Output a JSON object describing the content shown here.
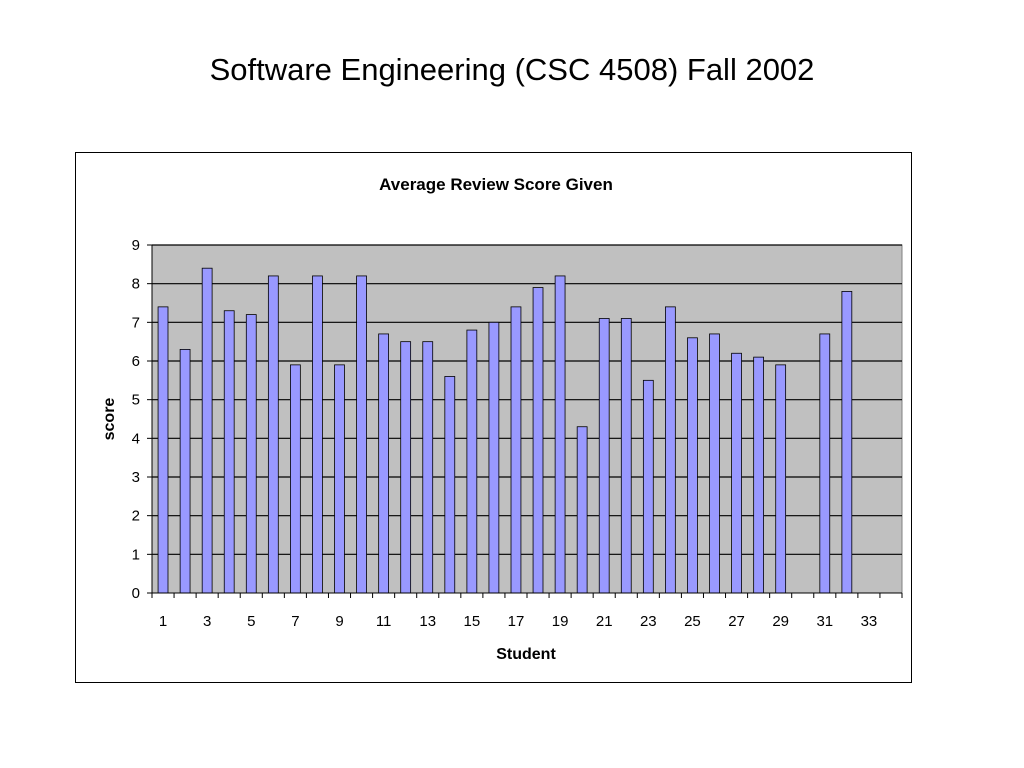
{
  "slide": {
    "title": "Software Engineering (CSC 4508) Fall 2002"
  },
  "chart_data": {
    "type": "bar",
    "title": "Average Review Score Given",
    "xlabel": "Student",
    "ylabel": "score",
    "ylim": [
      0,
      9
    ],
    "yticks": [
      0,
      1,
      2,
      3,
      4,
      5,
      6,
      7,
      8,
      9
    ],
    "categories": [
      "1",
      "2",
      "3",
      "4",
      "5",
      "6",
      "7",
      "8",
      "9",
      "10",
      "11",
      "12",
      "13",
      "14",
      "15",
      "16",
      "17",
      "18",
      "19",
      "20",
      "21",
      "22",
      "23",
      "24",
      "25",
      "26",
      "27",
      "28",
      "29",
      "30",
      "31",
      "32",
      "33",
      "34"
    ],
    "x_tick_labels": [
      "1",
      "3",
      "5",
      "7",
      "9",
      "11",
      "13",
      "15",
      "17",
      "19",
      "21",
      "23",
      "25",
      "27",
      "29",
      "31",
      "33"
    ],
    "values": [
      7.4,
      6.3,
      8.4,
      7.3,
      7.2,
      8.2,
      5.9,
      8.2,
      5.9,
      8.2,
      6.7,
      6.5,
      6.5,
      5.6,
      6.8,
      7.0,
      7.4,
      7.9,
      8.2,
      4.3,
      7.1,
      7.1,
      5.5,
      7.4,
      6.6,
      6.7,
      6.2,
      6.1,
      5.9,
      null,
      6.7,
      7.8,
      null,
      null
    ],
    "grid": true,
    "legend": "none",
    "colors": {
      "bar_fill": "#9999ff",
      "bar_stroke": "#000000",
      "plot_background": "#c0c0c0",
      "gridline": "#000000"
    }
  }
}
